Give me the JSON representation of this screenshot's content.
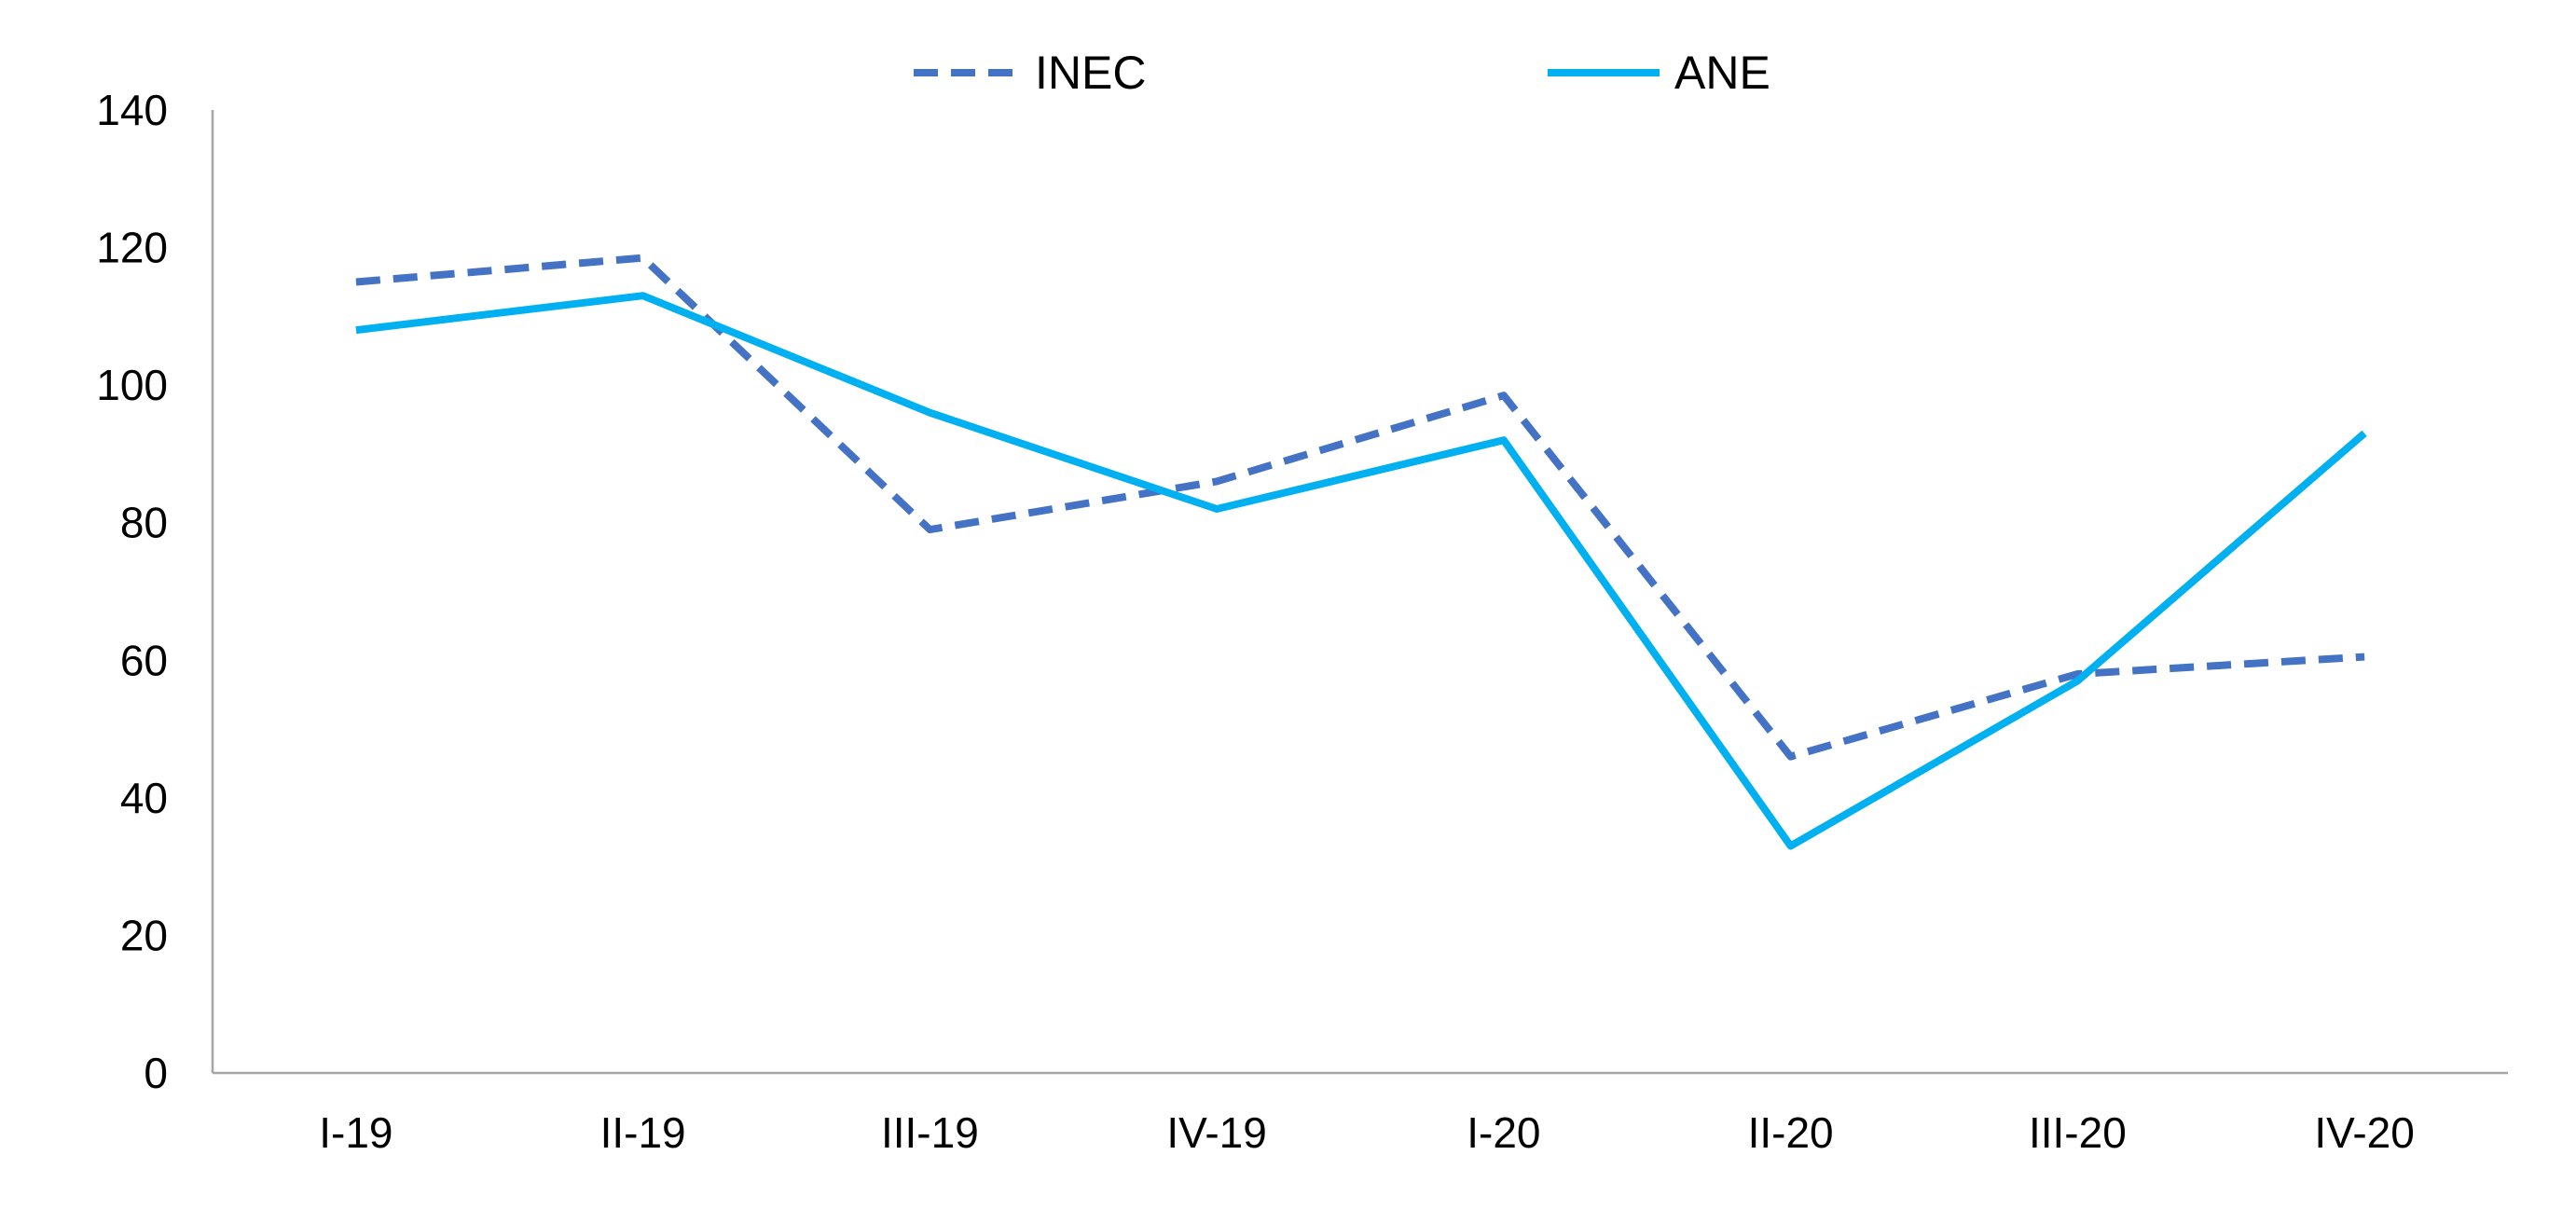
{
  "chart_data": {
    "type": "line",
    "title": "",
    "xlabel": "",
    "ylabel": "",
    "categories": [
      "I-19",
      "II-19",
      "III-19",
      "IV-19",
      "I-20",
      "II-20",
      "III-20",
      "IV-20"
    ],
    "ylim": [
      0,
      140
    ],
    "yticks": [
      0,
      20,
      40,
      60,
      80,
      100,
      120,
      140
    ],
    "grid": false,
    "legend_position": "top-center",
    "series": [
      {
        "name": "INEC",
        "style": "dashed",
        "color": "#4472c4",
        "values": [
          115,
          118.5,
          79,
          86,
          98.5,
          46,
          58,
          60.5
        ]
      },
      {
        "name": "ANE",
        "style": "solid",
        "color": "#00b0f0",
        "values": [
          108,
          113,
          96,
          82,
          92,
          33,
          57,
          93
        ]
      }
    ]
  }
}
